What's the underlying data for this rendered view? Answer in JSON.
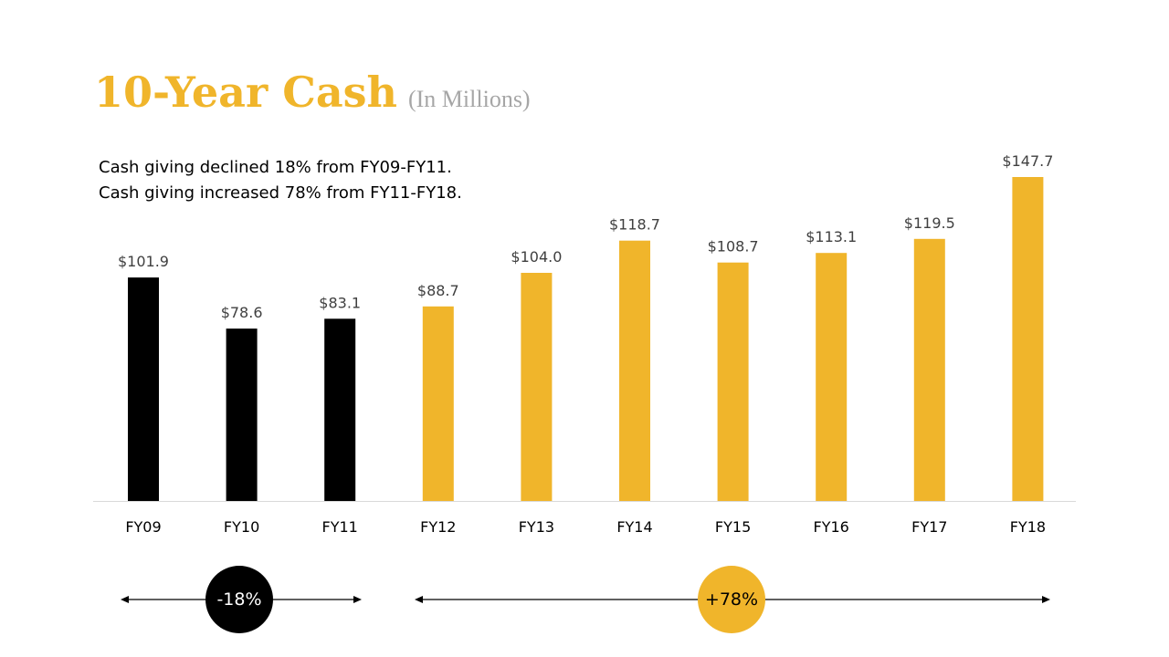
{
  "header": {
    "title": "10-Year Cash",
    "subtitle": "(In Millions)"
  },
  "notes": {
    "line1": "Cash giving declined 18% from FY09-FY11.",
    "line2": "Cash giving increased 78% from FY11-FY18."
  },
  "colors": {
    "decline": "#000000",
    "growth": "#f0b52b",
    "axis": "#d9d9d9"
  },
  "chart_data": {
    "type": "bar",
    "title": "10-Year Cash",
    "subtitle": "(In Millions)",
    "categories": [
      "FY09",
      "FY10",
      "FY11",
      "FY12",
      "FY13",
      "FY14",
      "FY15",
      "FY16",
      "FY17",
      "FY18"
    ],
    "values": [
      101.9,
      78.6,
      83.1,
      88.7,
      104.0,
      118.7,
      108.7,
      113.1,
      119.5,
      147.7
    ],
    "data_labels": [
      "$101.9",
      "$78.6",
      "$83.1",
      "$88.7",
      "$104.0",
      "$118.7",
      "$108.7",
      "$113.1",
      "$119.5",
      "$147.7"
    ],
    "bar_colors": [
      "#000000",
      "#000000",
      "#000000",
      "#f0b52b",
      "#f0b52b",
      "#f0b52b",
      "#f0b52b",
      "#f0b52b",
      "#f0b52b",
      "#f0b52b"
    ],
    "xlabel": "",
    "ylabel": "",
    "ylim": [
      0,
      147.7
    ],
    "grid": false,
    "legend": "none"
  },
  "periods": {
    "decline": {
      "label": "-18%",
      "range": "FY09-FY11"
    },
    "growth": {
      "label": "+78%",
      "range": "FY11-FY18"
    }
  }
}
